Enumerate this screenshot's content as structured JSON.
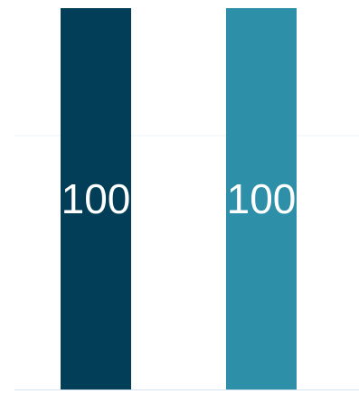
{
  "chart_data": {
    "type": "bar",
    "categories": [
      "",
      ""
    ],
    "values": [
      100,
      100
    ],
    "data_labels": [
      "100",
      "100"
    ],
    "colors": [
      "#023e57",
      "#2e8fa8"
    ],
    "ylim": [
      0,
      100
    ],
    "title": "",
    "xlabel": "",
    "ylabel": "",
    "grid": true,
    "gridline_color": "#eef4fa",
    "axis_color": "#d6e4f2"
  }
}
